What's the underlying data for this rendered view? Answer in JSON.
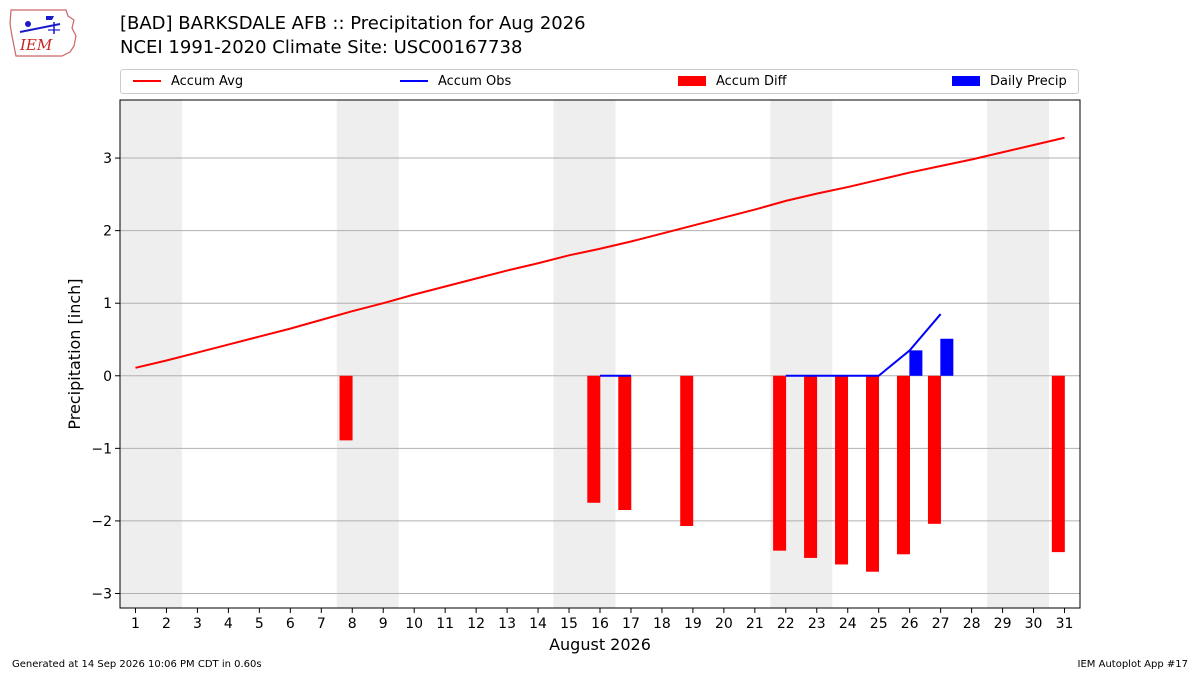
{
  "header": {
    "title_line1": "[BAD] BARKSDALE AFB :: Precipitation for Aug 2026",
    "title_line2": "NCEI 1991-2020 Climate Site: USC00167738"
  },
  "logo": {
    "text": "IEM"
  },
  "footer": {
    "left": "Generated at 14 Sep 2026 10:06 PM CDT in 0.60s",
    "right": "IEM Autoplot App #17"
  },
  "chart_data": {
    "type": "bar",
    "xlabel": "August 2026",
    "ylabel": "Precipitation [inch]",
    "xlim": [
      0.5,
      31.5
    ],
    "ylim": [
      -3.2,
      3.8
    ],
    "yticks": [
      -3,
      -2,
      -1,
      0,
      1,
      2,
      3
    ],
    "ytick_labels": [
      "−3",
      "−2",
      "−1",
      "0",
      "1",
      "2",
      "3"
    ],
    "xticks": [
      1,
      2,
      3,
      4,
      5,
      6,
      7,
      8,
      9,
      10,
      11,
      12,
      13,
      14,
      15,
      16,
      17,
      18,
      19,
      20,
      21,
      22,
      23,
      24,
      25,
      26,
      27,
      28,
      29,
      30,
      31
    ],
    "grid": "horizontal",
    "weekend_shading": [
      [
        1,
        2
      ],
      [
        8,
        9
      ],
      [
        15,
        16
      ],
      [
        22,
        23
      ],
      [
        29,
        30
      ]
    ],
    "legend": {
      "placement": "top",
      "entries": [
        {
          "label": "Accum Avg",
          "kind": "line",
          "color": "#ff0000"
        },
        {
          "label": "Accum Obs",
          "kind": "line",
          "color": "#0000ff"
        },
        {
          "label": "Accum Diff",
          "kind": "bar",
          "color": "#ff0000"
        },
        {
          "label": "Daily Precip",
          "kind": "bar",
          "color": "#0000ff"
        }
      ]
    },
    "series": [
      {
        "name": "Accum Avg",
        "kind": "line",
        "color": "#ff0000",
        "x": [
          1,
          2,
          3,
          4,
          5,
          6,
          7,
          8,
          9,
          10,
          11,
          12,
          13,
          14,
          15,
          16,
          17,
          18,
          19,
          20,
          21,
          22,
          23,
          24,
          25,
          26,
          27,
          28,
          29,
          30,
          31
        ],
        "values": [
          0.11,
          0.21,
          0.32,
          0.43,
          0.54,
          0.65,
          0.77,
          0.89,
          1.0,
          1.12,
          1.23,
          1.34,
          1.45,
          1.55,
          1.66,
          1.75,
          1.85,
          1.96,
          2.07,
          2.18,
          2.29,
          2.41,
          2.51,
          2.6,
          2.7,
          2.8,
          2.89,
          2.98,
          3.08,
          3.18,
          3.28
        ]
      },
      {
        "name": "Accum Obs",
        "kind": "line",
        "color": "#0000ff",
        "segments": [
          {
            "x": [
              16,
              17
            ],
            "values": [
              0.0,
              0.0
            ]
          },
          {
            "x": [
              22,
              23,
              24,
              25,
              26,
              27
            ],
            "values": [
              0.0,
              0.0,
              0.0,
              0.0,
              0.35,
              0.85
            ]
          }
        ]
      },
      {
        "name": "Accum Diff",
        "kind": "bar",
        "color": "#ff0000",
        "x": [
          8,
          16,
          17,
          19,
          22,
          23,
          24,
          25,
          26,
          27,
          31
        ],
        "values": [
          -0.89,
          -1.75,
          -1.85,
          -2.07,
          -2.41,
          -2.51,
          -2.6,
          -2.7,
          -2.46,
          -2.04,
          -2.43
        ]
      },
      {
        "name": "Daily Precip",
        "kind": "bar",
        "color": "#0000ff",
        "x": [
          26,
          27
        ],
        "values": [
          0.35,
          0.51
        ]
      }
    ]
  }
}
